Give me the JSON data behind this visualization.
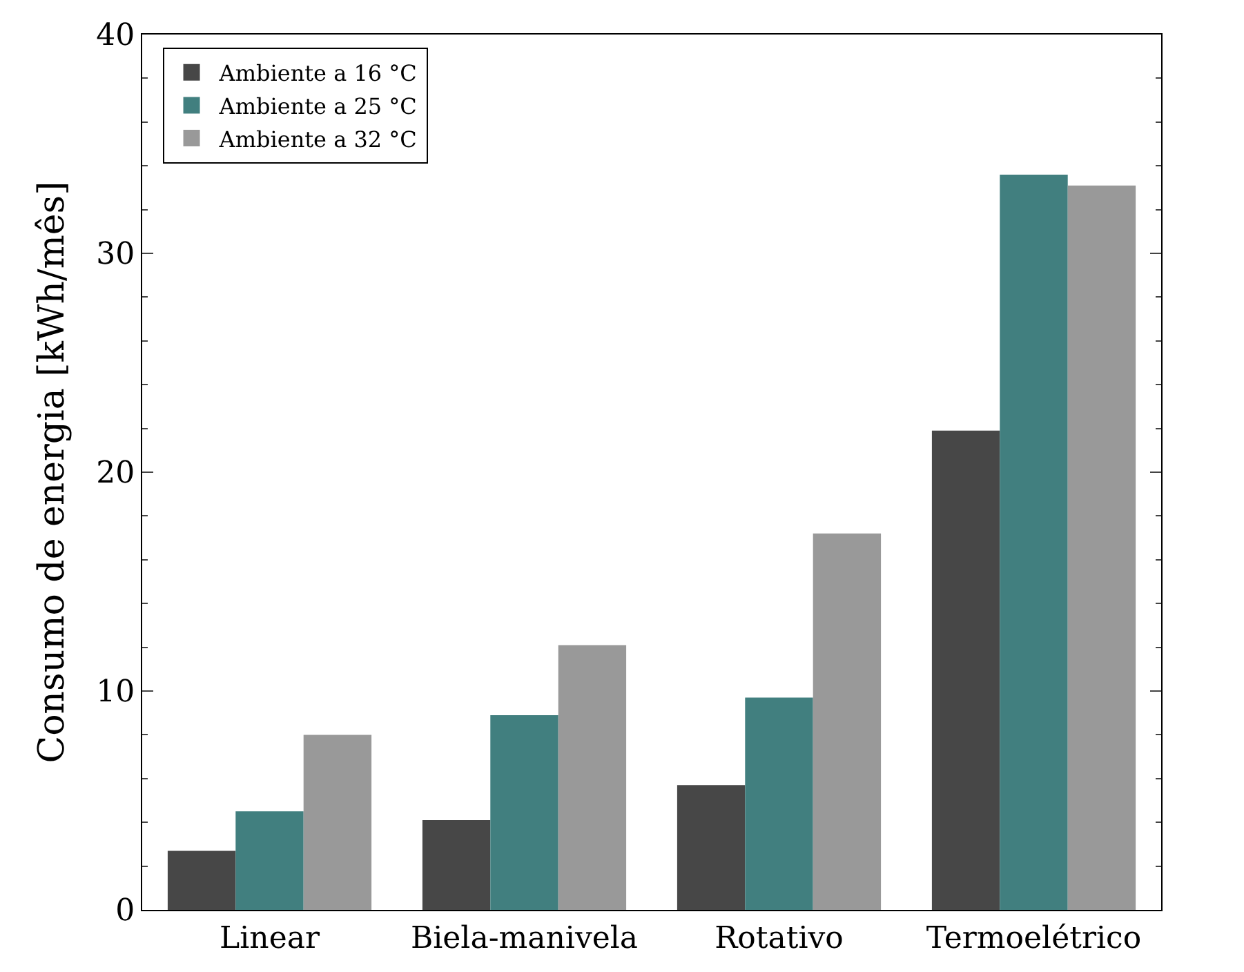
{
  "chart_data": {
    "type": "bar",
    "ylabel": "Consumo de energia [kWh/mês]",
    "categories": [
      "Linear",
      "Biela-manivela",
      "Rotativo",
      "Termoelétrico"
    ],
    "series": [
      {
        "name": "Ambiente a 16 °C",
        "color": "#474747",
        "values": [
          2.7,
          4.1,
          5.7,
          21.9
        ]
      },
      {
        "name": "Ambiente a 25 °C",
        "color": "#417f7f",
        "values": [
          4.5,
          8.9,
          9.7,
          33.6
        ]
      },
      {
        "name": "Ambiente a 32 °C",
        "color": "#999999",
        "values": [
          8.0,
          12.1,
          17.2,
          33.1
        ]
      }
    ],
    "ylim": [
      0,
      40
    ],
    "yticks": [
      0,
      10,
      20,
      30,
      40
    ],
    "legend": "top left"
  }
}
